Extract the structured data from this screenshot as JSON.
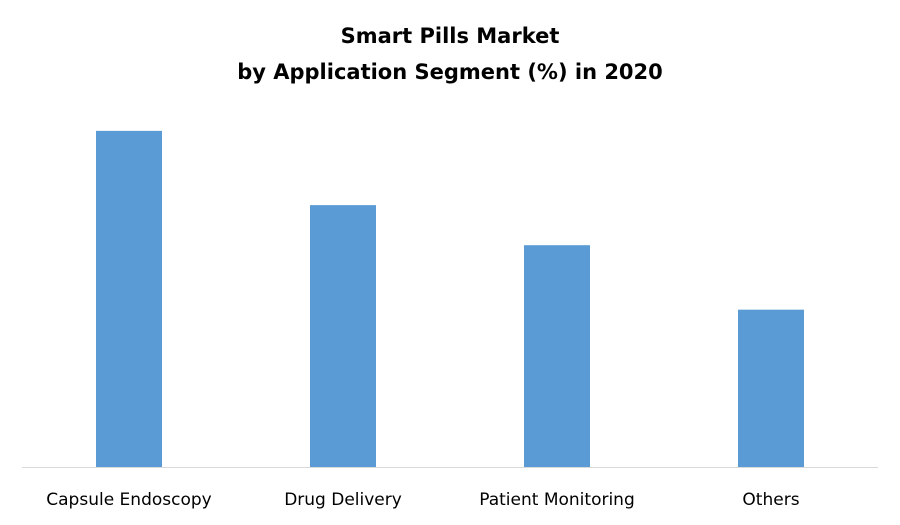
{
  "chart_data": {
    "type": "bar",
    "title": [
      "Smart Pills Market",
      "by Application Segment (%) in 2020"
    ],
    "xlabel": "",
    "ylabel": "",
    "categories": [
      "Capsule Endoscopy",
      "Drug Delivery",
      "Patient Monitoring",
      "Others"
    ],
    "values": [
      34.4,
      26.8,
      22.7,
      16.1
    ],
    "ylim": [
      0,
      35
    ],
    "grid": false,
    "legend": "none",
    "bar_color": "#5B9BD5",
    "axis_color": "#D9D9D9"
  }
}
